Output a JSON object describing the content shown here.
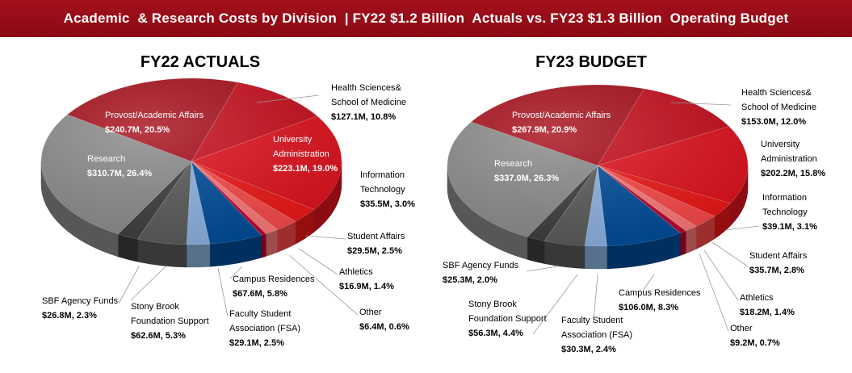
{
  "banner": "Academic  & Research Costs by Division  | FY22 $1.2 Billion  Actuals vs. FY23 $1.3 Billion  Operating Budget",
  "chart_data": [
    {
      "type": "pie",
      "title": "FY22 ACTUALS",
      "unit": "$M",
      "slices": [
        {
          "name": "Health Sciences& School of Medicine",
          "value": 127.1,
          "value_label": "$127.1M, 10.8%",
          "color": "#c8101e"
        },
        {
          "name": "University Administration",
          "value": 223.1,
          "value_label": "$223.1M, 19.0%",
          "color": "#e3141f"
        },
        {
          "name": "Information Technology",
          "value": 35.5,
          "value_label": "$35.5M, 3.0%",
          "color": "#f01818"
        },
        {
          "name": "Student Affairs",
          "value": 29.5,
          "value_label": "$29.5M, 2.5%",
          "color": "#fb4a4a"
        },
        {
          "name": "Athletics",
          "value": 16.9,
          "value_label": "$16.9M, 1.4%",
          "color": "#ff7a7a"
        },
        {
          "name": "Other",
          "value": 6.4,
          "value_label": "$6.4M, 0.6%",
          "color": "#c00030"
        },
        {
          "name": "Campus Residences",
          "value": 67.6,
          "value_label": "$67.6M, 5.8%",
          "color": "#004e9a"
        },
        {
          "name": "Faculty Student Association (FSA)",
          "value": 29.1,
          "value_label": "$29.1M, 2.5%",
          "color": "#8db4e2"
        },
        {
          "name": "Stony Brook Foundation Support",
          "value": 62.6,
          "value_label": "$62.6M, 5.3%",
          "color": "#5b5b5b"
        },
        {
          "name": "SBF Agency Funds",
          "value": 26.8,
          "value_label": "$26.8M, 2.3%",
          "color": "#3d3d3d"
        },
        {
          "name": "Research",
          "value": 310.7,
          "value_label": "$310.7M, 26.4%",
          "color": "#8c8c8c"
        },
        {
          "name": "Provost/Academic Affairs",
          "value": 240.7,
          "value_label": "$240.7M, 20.5%",
          "color": "#a8101c"
        }
      ]
    },
    {
      "type": "pie",
      "title": "FY23 BUDGET",
      "unit": "$M",
      "slices": [
        {
          "name": "Health Sciences& School of Medicine",
          "value": 153.0,
          "value_label": "$153.0M, 12.0%",
          "color": "#c8101e"
        },
        {
          "name": "University Administration",
          "value": 202.2,
          "value_label": "$202.2M, 15.8%",
          "color": "#e3141f"
        },
        {
          "name": "Information Technology",
          "value": 39.1,
          "value_label": "$39.1M, 3.1%",
          "color": "#f01818"
        },
        {
          "name": "Student Affairs",
          "value": 35.7,
          "value_label": "$35.7M, 2.8%",
          "color": "#fb4a4a"
        },
        {
          "name": "Athletics",
          "value": 18.2,
          "value_label": "$18.2M, 1.4%",
          "color": "#ff7a7a"
        },
        {
          "name": "Other",
          "value": 9.2,
          "value_label": "$9.2M, 0.7%",
          "color": "#c00030"
        },
        {
          "name": "Campus Residences",
          "value": 106.0,
          "value_label": "$106.0M, 8.3%",
          "color": "#004e9a"
        },
        {
          "name": "Faculty Student Association (FSA)",
          "value": 30.3,
          "value_label": "$30.3M, 2.4%",
          "color": "#8db4e2"
        },
        {
          "name": "Stony Brook Foundation Support",
          "value": 56.3,
          "value_label": "$56.3M, 4.4%",
          "color": "#5b5b5b"
        },
        {
          "name": "SBF Agency Funds",
          "value": 25.3,
          "value_label": "$25.3M, 2.0%",
          "color": "#3d3d3d"
        },
        {
          "name": "Research",
          "value": 337.0,
          "value_label": "$337.0M, 26.3%",
          "color": "#8c8c8c"
        },
        {
          "name": "Provost/Academic Affairs",
          "value": 267.9,
          "value_label": "$267.9M, 20.9%",
          "color": "#a8101c"
        }
      ]
    }
  ]
}
